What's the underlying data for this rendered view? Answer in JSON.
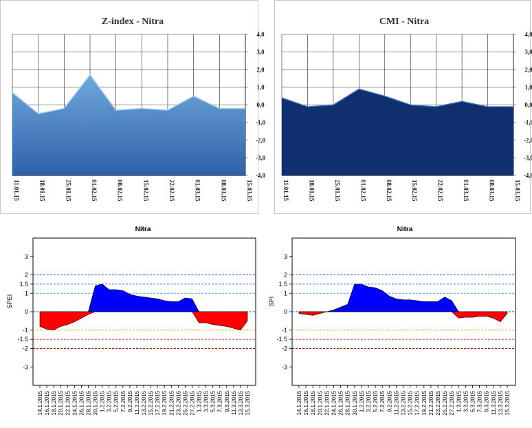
{
  "chart_data": [
    {
      "type": "area",
      "title": "Z-index - Nitra",
      "x": [
        "11.01.15",
        "18.01.15",
        "25.01.15",
        "01.02.15",
        "08.02.15",
        "15.02.15",
        "22.02.15",
        "01.03.15",
        "08.03.15",
        "15.03.15"
      ],
      "values": [
        0.7,
        -0.5,
        -0.2,
        1.7,
        -0.3,
        -0.2,
        -0.3,
        0.5,
        -0.2,
        -0.2
      ],
      "ylim": [
        -4,
        4
      ],
      "yticks": [
        "4,0",
        "3,0",
        "2,0",
        "1,0",
        "0,0",
        "-1,0",
        "-2,0",
        "-3,0",
        "-4,0"
      ],
      "grid": true,
      "colors": {
        "fill_top": "#6fa8dc",
        "fill_bottom": "#2e62a8",
        "line": "#9dc8f0"
      }
    },
    {
      "type": "area",
      "title": "CMI - Nitra",
      "x": [
        "11.01.15",
        "18.01.15",
        "25.01.15",
        "01.02.15",
        "08.02.15",
        "15.02.15",
        "22.02.15",
        "01.03.15",
        "08.03.15",
        "15.03.15"
      ],
      "values": [
        0.4,
        -0.1,
        0.0,
        0.9,
        0.5,
        0.0,
        -0.1,
        0.2,
        -0.1,
        -0.1
      ],
      "ylim": [
        -4,
        4
      ],
      "yticks": [
        "4,0",
        "3,0",
        "2,0",
        "1,0",
        "0,0",
        "-1,0",
        "-2,0",
        "-3,0",
        "-4,0"
      ],
      "grid": true,
      "colors": {
        "fill": "#0f2f6e",
        "line": "#3f6fb5"
      }
    },
    {
      "type": "area",
      "title": "Nitra",
      "ylabel": "SPEI",
      "ylim": [
        -4,
        4
      ],
      "yticks": [
        "3",
        "2",
        "1.5",
        "1",
        "0",
        "-1",
        "-1.5",
        "-2",
        "-3"
      ],
      "ytick_values": [
        3,
        2,
        1.5,
        1,
        0,
        -1,
        -1.5,
        -2,
        -3
      ],
      "categories": [
        "14.1.2015",
        "16.1.2015",
        "18.1.2015",
        "20.1.2015",
        "22.1.2015",
        "24.1.2015",
        "26.1.2015",
        "28.1.2015",
        "30.1.2015",
        "1.2.2015",
        "3.2.2015",
        "5.2.2015",
        "7.2.2015",
        "9.2.2015",
        "11.2.2015",
        "13.2.2015",
        "15.2.2015",
        "17.2.2015",
        "19.2.2015",
        "21.2.2015",
        "23.2.2015",
        "25.2.2015",
        "27.2.2015",
        "1.3.2015",
        "3.3.2015",
        "5.3.2015",
        "7.3.2015",
        "9.3.2015",
        "11.3.2015",
        "13.3.2015",
        "15.3.2015"
      ],
      "values": [
        -0.8,
        -0.95,
        -1.0,
        -0.8,
        -0.7,
        -0.55,
        -0.35,
        -0.15,
        1.4,
        1.5,
        1.2,
        1.2,
        1.15,
        0.95,
        0.85,
        0.8,
        0.75,
        0.7,
        0.6,
        0.55,
        0.55,
        0.75,
        0.7,
        -0.6,
        -0.6,
        -0.7,
        -0.75,
        -0.8,
        -0.9,
        -1.0,
        -0.5
      ],
      "thresholds": [
        {
          "value": 2,
          "color": "#1f3fbf"
        },
        {
          "value": 1.5,
          "color": "#3f78e0"
        },
        {
          "value": 1,
          "color": "#4aa0ff"
        },
        {
          "value": 0,
          "color": "#1f3fbf"
        },
        {
          "value": -1,
          "color": "#ff9a00"
        },
        {
          "value": -1.5,
          "color": "#e03030"
        },
        {
          "value": -2,
          "color": "#b01010"
        }
      ],
      "colors": {
        "positive": "#0000ff",
        "negative": "#ff0000"
      }
    },
    {
      "type": "area",
      "title": "Nitra",
      "ylabel": "SPI",
      "ylim": [
        -4,
        4
      ],
      "yticks": [
        "3",
        "2",
        "1.5",
        "1",
        "0",
        "-1",
        "-1.5",
        "-2",
        "-3"
      ],
      "ytick_values": [
        3,
        2,
        1.5,
        1,
        0,
        -1,
        -1.5,
        -2,
        -3
      ],
      "categories": [
        "14.1.2015",
        "16.1.2015",
        "18.1.2015",
        "20.1.2015",
        "22.1.2015",
        "24.1.2015",
        "26.1.2015",
        "28.1.2015",
        "30.1.2015",
        "1.2.2015",
        "3.2.2015",
        "5.2.2015",
        "7.2.2015",
        "9.2.2015",
        "11.2.2015",
        "13.2.2015",
        "15.2.2015",
        "17.2.2015",
        "19.2.2015",
        "21.2.2015",
        "23.2.2015",
        "25.2.2015",
        "27.2.2015",
        "1.3.2015",
        "3.3.2015",
        "5.3.2015",
        "7.3.2015",
        "9.3.2015",
        "11.3.2015",
        "13.3.2015",
        "15.3.2015"
      ],
      "values": [
        -0.1,
        -0.15,
        -0.2,
        -0.1,
        0.0,
        0.1,
        0.25,
        0.4,
        1.5,
        1.5,
        1.35,
        1.3,
        1.15,
        0.85,
        0.7,
        0.65,
        0.65,
        0.6,
        0.55,
        0.55,
        0.55,
        0.8,
        0.6,
        -0.35,
        -0.3,
        -0.3,
        -0.25,
        -0.25,
        -0.35,
        -0.55,
        -0.1
      ],
      "thresholds": [
        {
          "value": 2,
          "color": "#1f3fbf"
        },
        {
          "value": 1.5,
          "color": "#3f78e0"
        },
        {
          "value": 1,
          "color": "#4aa0ff"
        },
        {
          "value": 0,
          "color": "#1f3fbf"
        },
        {
          "value": -1,
          "color": "#ff9a00"
        },
        {
          "value": -1.5,
          "color": "#e03030"
        },
        {
          "value": -2,
          "color": "#b01010"
        }
      ],
      "colors": {
        "positive": "#0000ff",
        "negative": "#ff0000"
      }
    }
  ]
}
